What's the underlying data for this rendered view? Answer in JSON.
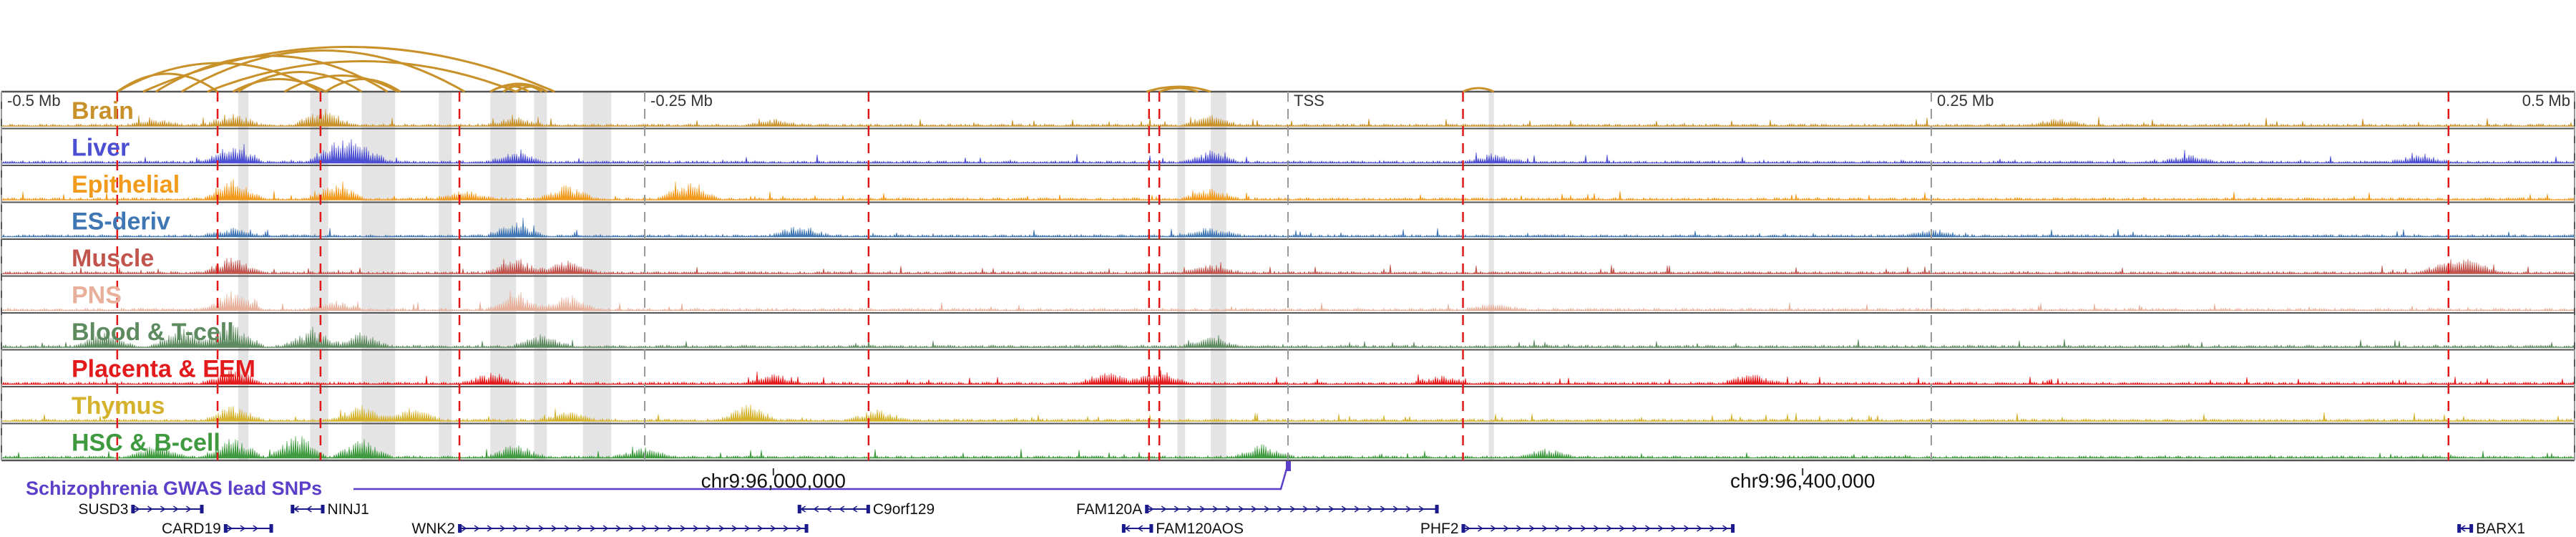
{
  "axis": {
    "ticks": [
      {
        "label": "-0.5 Mb",
        "pos": -0.5
      },
      {
        "label": "-0.25 Mb",
        "pos": -0.25
      },
      {
        "label": "TSS",
        "pos": 0
      },
      {
        "label": "0.25 Mb",
        "pos": 0.25
      },
      {
        "label": "0.5 Mb",
        "pos": 0.5
      }
    ],
    "range": [
      -0.5,
      0.5
    ]
  },
  "tracks": [
    {
      "label": "Brain",
      "color": "#c8912a"
    },
    {
      "label": "Liver",
      "color": "#4c4fd1"
    },
    {
      "label": "Epithelial",
      "color": "#f29a1c"
    },
    {
      "label": "ES-deriv",
      "color": "#3f76b4"
    },
    {
      "label": "Muscle",
      "color": "#c1554e"
    },
    {
      "label": "PNS",
      "color": "#e8b09a"
    },
    {
      "label": "Blood & T-cell",
      "color": "#5d8a5f"
    },
    {
      "label": "Placenta & EEM",
      "color": "#e31a1c"
    },
    {
      "label": "Thymus",
      "color": "#d4b22c"
    },
    {
      "label": "HSC & B-cell",
      "color": "#3f9a3f"
    }
  ],
  "gwas": {
    "label": "Schizophrenia GWAS lead SNPs",
    "color": "#5b3fc8",
    "snp_pos": 0.0
  },
  "coordinates": [
    {
      "label": "chr9:96,000,000",
      "pos": -0.2
    },
    {
      "label": "chr9:96,400,000",
      "pos": 0.2
    }
  ],
  "red_markers": [
    -0.455,
    -0.416,
    -0.376,
    -0.322,
    -0.163,
    -0.054,
    -0.05,
    0.068,
    0.451
  ],
  "highlight_regions": [
    [
      -0.408,
      -0.404
    ],
    [
      -0.38,
      -0.373
    ],
    [
      -0.36,
      -0.347
    ],
    [
      -0.33,
      -0.325
    ],
    [
      -0.31,
      -0.3
    ],
    [
      -0.293,
      -0.288
    ],
    [
      -0.274,
      -0.263
    ],
    [
      -0.043,
      -0.04
    ],
    [
      -0.03,
      -0.024
    ],
    [
      0.078,
      0.08
    ]
  ],
  "genes": [
    {
      "name": "SUSD3",
      "start": -0.449,
      "end": -0.422,
      "row": 0,
      "label_side": "left",
      "strand": "+"
    },
    {
      "name": "NINJ1",
      "start": -0.387,
      "end": -0.375,
      "row": 0,
      "label_side": "right",
      "strand": "-"
    },
    {
      "name": "C9orf129",
      "start": -0.19,
      "end": -0.163,
      "row": 0,
      "label_side": "right",
      "strand": "-"
    },
    {
      "name": "FAM120A",
      "start": -0.055,
      "end": 0.058,
      "row": 0,
      "label_side": "left",
      "strand": "+"
    },
    {
      "name": "CARD19",
      "start": -0.413,
      "end": -0.395,
      "row": 1,
      "label_side": "left",
      "strand": "+"
    },
    {
      "name": "WNK2",
      "start": -0.322,
      "end": -0.187,
      "row": 1,
      "label_side": "left",
      "strand": "+"
    },
    {
      "name": "FAM120AOS",
      "start": -0.064,
      "end": -0.053,
      "row": 1,
      "label_side": "right",
      "strand": "-"
    },
    {
      "name": "PHF2",
      "start": 0.068,
      "end": 0.173,
      "row": 1,
      "label_side": "left",
      "strand": "+"
    },
    {
      "name": "BARX1",
      "start": 0.455,
      "end": 0.46,
      "row": 1,
      "label_side": "right",
      "strand": "-"
    }
  ],
  "loops": [
    {
      "a": -0.455,
      "b": -0.376,
      "h": 0.8
    },
    {
      "a": -0.44,
      "b": -0.35,
      "h": 1.0
    },
    {
      "a": -0.43,
      "b": -0.32,
      "h": 1.15
    },
    {
      "a": -0.42,
      "b": -0.3,
      "h": 0.85
    },
    {
      "a": -0.445,
      "b": -0.285,
      "h": 1.25
    },
    {
      "a": -0.408,
      "b": -0.36,
      "h": 0.55
    },
    {
      "a": -0.39,
      "b": -0.346,
      "h": 0.45
    },
    {
      "a": -0.374,
      "b": -0.345,
      "h": 0.35
    },
    {
      "a": -0.455,
      "b": -0.416,
      "h": 0.5
    },
    {
      "a": -0.41,
      "b": -0.374,
      "h": 0.35
    },
    {
      "a": -0.31,
      "b": -0.288,
      "h": 0.22
    },
    {
      "a": -0.305,
      "b": -0.29,
      "h": 0.18
    },
    {
      "a": -0.3,
      "b": -0.288,
      "h": 0.14
    },
    {
      "a": -0.31,
      "b": -0.295,
      "h": 0.16
    },
    {
      "a": -0.055,
      "b": -0.03,
      "h": 0.14
    },
    {
      "a": -0.05,
      "b": -0.035,
      "h": 0.1
    },
    {
      "a": 0.068,
      "b": 0.08,
      "h": 0.1
    }
  ],
  "signal_peaks": [
    {
      "track": 0,
      "peaks": [
        [
          -0.41,
          0.45
        ],
        [
          -0.375,
          0.6
        ],
        [
          -0.3,
          0.3
        ],
        [
          -0.03,
          0.35
        ],
        [
          0.3,
          0.25
        ],
        [
          -0.44,
          0.2
        ],
        [
          -0.2,
          0.2
        ]
      ]
    },
    {
      "track": 1,
      "peaks": [
        [
          -0.41,
          0.7
        ],
        [
          -0.37,
          0.75
        ],
        [
          -0.36,
          0.6
        ],
        [
          -0.3,
          0.35
        ],
        [
          -0.03,
          0.4
        ],
        [
          0.08,
          0.3
        ],
        [
          0.35,
          0.25
        ],
        [
          0.44,
          0.25
        ]
      ]
    },
    {
      "track": 2,
      "peaks": [
        [
          -0.41,
          0.8
        ],
        [
          -0.37,
          0.6
        ],
        [
          -0.28,
          0.5
        ],
        [
          -0.233,
          0.65
        ],
        [
          -0.03,
          0.4
        ],
        [
          -0.32,
          0.3
        ]
      ]
    },
    {
      "track": 3,
      "peaks": [
        [
          -0.3,
          0.5
        ],
        [
          -0.41,
          0.3
        ],
        [
          -0.03,
          0.3
        ],
        [
          -0.19,
          0.4
        ],
        [
          0.25,
          0.25
        ]
      ]
    },
    {
      "track": 4,
      "peaks": [
        [
          -0.41,
          0.6
        ],
        [
          -0.3,
          0.55
        ],
        [
          -0.28,
          0.45
        ],
        [
          -0.03,
          0.3
        ],
        [
          0.45,
          0.35
        ],
        [
          0.46,
          0.45
        ]
      ]
    },
    {
      "track": 5,
      "peaks": [
        [
          -0.41,
          0.7
        ],
        [
          -0.3,
          0.6
        ],
        [
          -0.28,
          0.5
        ],
        [
          -0.37,
          0.3
        ],
        [
          0.08,
          0.25
        ]
      ]
    },
    {
      "track": 6,
      "peaks": [
        [
          -0.46,
          0.55
        ],
        [
          -0.43,
          0.7
        ],
        [
          -0.41,
          0.9
        ],
        [
          -0.38,
          0.6
        ],
        [
          -0.36,
          0.5
        ],
        [
          -0.29,
          0.45
        ],
        [
          -0.03,
          0.35
        ]
      ]
    },
    {
      "track": 7,
      "peaks": [
        [
          -0.41,
          0.6
        ],
        [
          -0.31,
          0.35
        ],
        [
          -0.2,
          0.35
        ],
        [
          -0.07,
          0.45
        ],
        [
          -0.05,
          0.5
        ],
        [
          0.18,
          0.35
        ],
        [
          0.06,
          0.3
        ]
      ]
    },
    {
      "track": 8,
      "peaks": [
        [
          -0.41,
          0.55
        ],
        [
          -0.36,
          0.6
        ],
        [
          -0.34,
          0.5
        ],
        [
          -0.28,
          0.3
        ],
        [
          -0.21,
          0.6
        ],
        [
          -0.16,
          0.4
        ]
      ]
    },
    {
      "track": 9,
      "peaks": [
        [
          -0.44,
          0.5
        ],
        [
          -0.41,
          0.75
        ],
        [
          -0.385,
          0.9
        ],
        [
          -0.36,
          0.7
        ],
        [
          -0.3,
          0.5
        ],
        [
          -0.01,
          0.45
        ],
        [
          -0.25,
          0.35
        ],
        [
          0.1,
          0.3
        ]
      ]
    }
  ]
}
